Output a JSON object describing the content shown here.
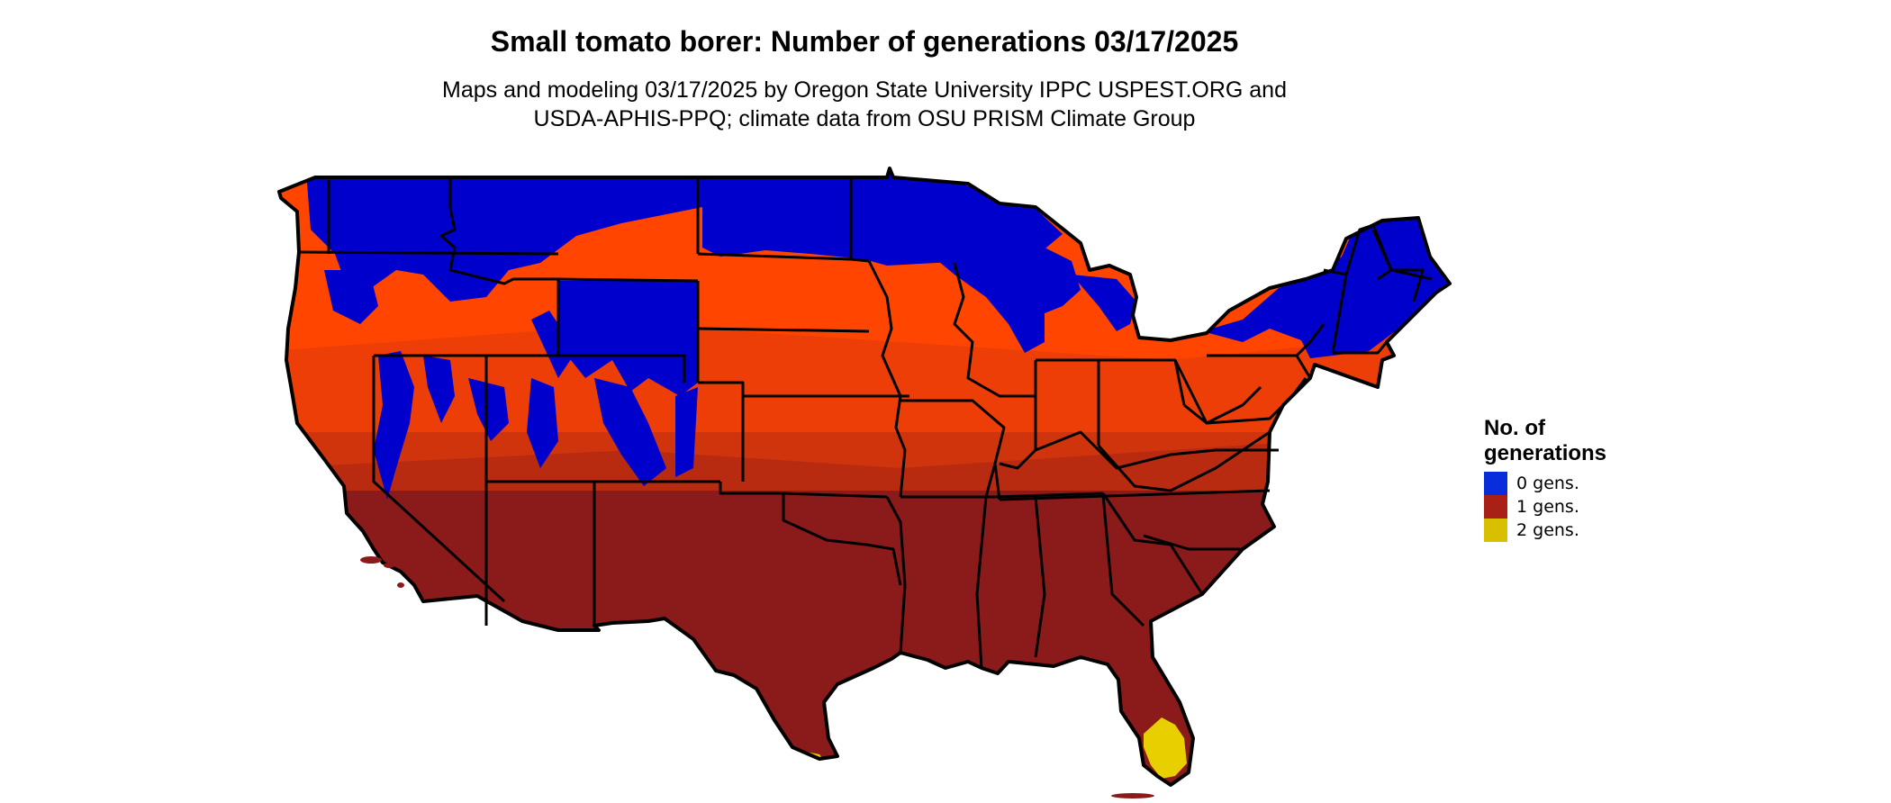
{
  "header": {
    "title": "Small tomato borer: Number of generations 03/17/2025",
    "subtitle_line1": "Maps and modeling 03/17/2025 by Oregon State University IPPC USPEST.ORG and",
    "subtitle_line2": "USDA-APHIS-PPQ; climate data from OSU PRISM Climate Group"
  },
  "legend": {
    "title_line1": "No. of",
    "title_line2": "generations",
    "items": [
      {
        "label": "0 gens.",
        "color": "#0a2ddc"
      },
      {
        "label": "1 gens.",
        "color": "#a82016"
      },
      {
        "label": "2 gens.",
        "color": "#d8c000"
      }
    ]
  },
  "map_colors": {
    "zero": "#0000cc",
    "orange": "#ff4500",
    "orange_mid": "#e03a0a",
    "one": "#8b1a1a",
    "two": "#e8d000",
    "border": "#000000"
  }
}
